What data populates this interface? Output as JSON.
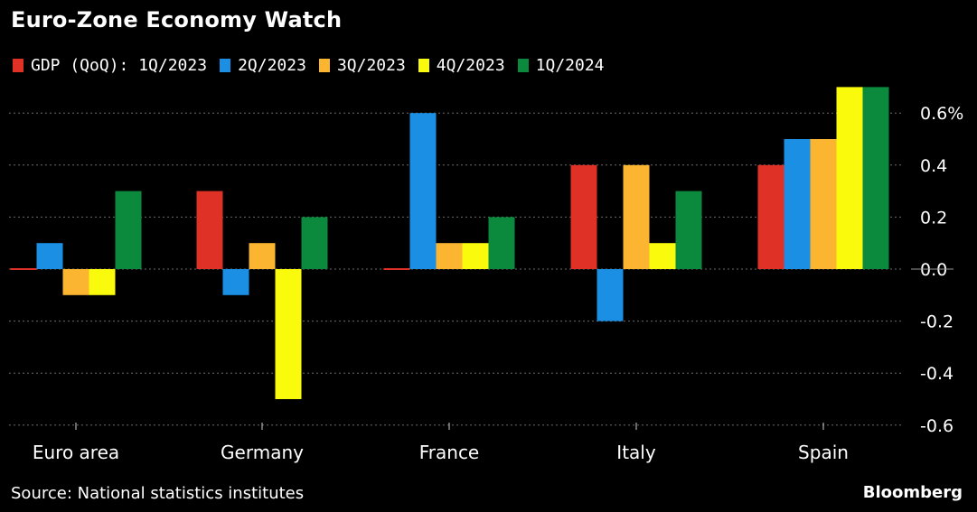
{
  "chart_data": {
    "type": "bar",
    "title": "Euro-Zone Economy Watch",
    "categories": [
      "Euro area",
      "Germany",
      "France",
      "Italy",
      "Spain"
    ],
    "series": [
      {
        "name": "GDP (QoQ): 1Q/2023",
        "color": "#e03127",
        "values": [
          0.0,
          0.3,
          0.0,
          0.4,
          0.4
        ]
      },
      {
        "name": "2Q/2023",
        "color": "#1a8fe3",
        "values": [
          0.1,
          -0.1,
          0.6,
          -0.2,
          0.5
        ]
      },
      {
        "name": "3Q/2023",
        "color": "#fbb531",
        "values": [
          -0.1,
          0.1,
          0.1,
          0.4,
          0.5
        ]
      },
      {
        "name": "4Q/2023",
        "color": "#fafa0c",
        "values": [
          -0.1,
          -0.5,
          0.1,
          0.1,
          0.7
        ]
      },
      {
        "name": "1Q/2024",
        "color": "#0b8a3e",
        "values": [
          0.3,
          0.2,
          0.2,
          0.3,
          0.7
        ]
      }
    ],
    "yaxis": {
      "ticks": [
        0.6,
        0.4,
        0.2,
        0.0,
        -0.2,
        -0.4,
        -0.6
      ],
      "tick_labels": [
        "0.6%",
        "0.4",
        "0.2",
        "0.0",
        "-0.2",
        "-0.4",
        "-0.6"
      ],
      "range": [
        -0.6,
        0.7
      ],
      "position": "right"
    },
    "grid": true,
    "legend_position": "top-left"
  },
  "footer": {
    "source": "Source: National statistics institutes",
    "brand": "Bloomberg"
  }
}
